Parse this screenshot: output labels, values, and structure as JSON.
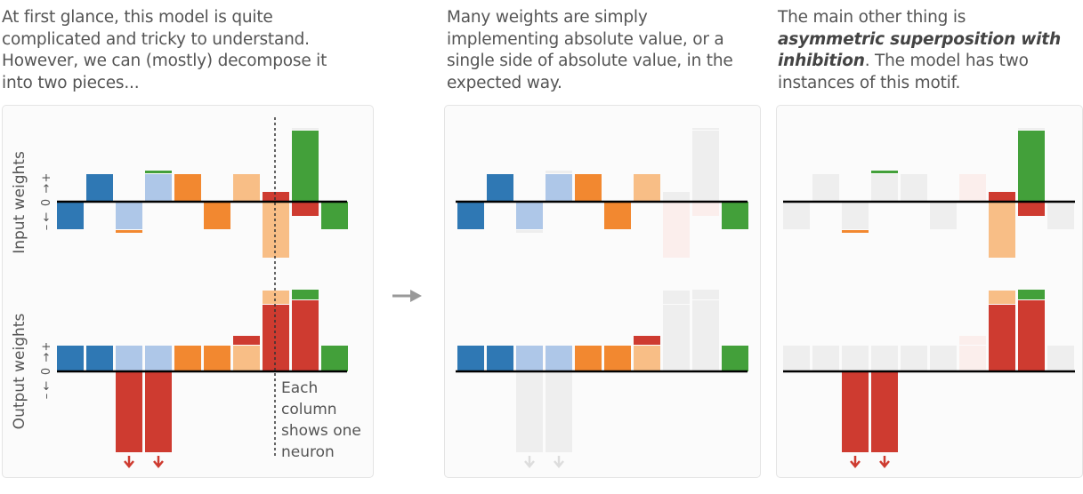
{
  "captions": {
    "panel1": [
      "At first glance, this model is quite",
      "complicated and tricky to understand.",
      "However, we can (mostly) decompose it",
      "into two pieces..."
    ],
    "panel2": [
      "Many weights are simply",
      "implementing absolute value, or a",
      "single side of absolute value, in the",
      "expected way."
    ],
    "panel3": {
      "line1": "The main other thing is",
      "emph": "asymmetric superposition with inhibition",
      "tail": ". The model has two instances of this motif."
    }
  },
  "axis_labels": {
    "input": "Input weights",
    "output": "Output weights",
    "minus": "–",
    "zero": "0",
    "plus": "+"
  },
  "annotation": [
    "Each",
    "column",
    "shows one",
    "neuron"
  ],
  "colors": {
    "blue": "#2f78b4",
    "light_blue": "#aec7e8",
    "orange": "#f28830",
    "light_orange": "#f8be86",
    "red": "#ce3b30",
    "light_red": "#f4a69e",
    "green": "#43a03a",
    "gray": "#eeeeee",
    "faint_red": "#fbeeec"
  },
  "neurons": [
    {
      "in_pos": 0.0,
      "in_pos_color": "",
      "in_neg": -0.95,
      "in_neg_color": "blue",
      "out_pos": 0.9,
      "out_pos_color": "blue",
      "out_neg": 0.0,
      "out_neg_color": "",
      "extra_pos": 0.0,
      "extra_pos_color": "",
      "extra_neg": 0.0,
      "extra_neg_color": "",
      "role": "abs"
    },
    {
      "in_pos": 0.95,
      "in_pos_color": "blue",
      "in_neg": 0.0,
      "in_neg_color": "",
      "out_pos": 0.9,
      "out_pos_color": "blue",
      "out_neg": 0.0,
      "out_neg_color": "",
      "extra_pos": 0.0,
      "extra_pos_color": "",
      "extra_neg": 0.0,
      "extra_neg_color": "",
      "role": "abs"
    },
    {
      "in_pos": 0.0,
      "in_pos_color": "",
      "in_neg": -0.95,
      "in_neg_color": "light_blue",
      "out_pos": 0.9,
      "out_pos_color": "light_blue",
      "out_neg": -2.8,
      "out_neg_color": "red",
      "extra_pos": 0.0,
      "extra_pos_color": "",
      "extra_neg": -0.08,
      "extra_neg_color": "orange",
      "role": "abs-inhibited"
    },
    {
      "in_pos": 0.95,
      "in_pos_color": "light_blue",
      "in_neg": 0.0,
      "in_neg_color": "",
      "out_pos": 0.9,
      "out_pos_color": "light_blue",
      "out_neg": -2.8,
      "out_neg_color": "red",
      "extra_pos": 0.08,
      "extra_pos_color": "green",
      "extra_neg": 0.0,
      "extra_neg_color": "",
      "role": "abs-inhibited"
    },
    {
      "in_pos": 0.95,
      "in_pos_color": "orange",
      "in_neg": 0.0,
      "in_neg_color": "",
      "out_pos": 0.9,
      "out_pos_color": "orange",
      "out_neg": 0.0,
      "out_neg_color": "",
      "extra_pos": 0.0,
      "extra_pos_color": "",
      "extra_neg": 0.0,
      "extra_neg_color": "",
      "role": "abs"
    },
    {
      "in_pos": 0.0,
      "in_pos_color": "",
      "in_neg": -0.95,
      "in_neg_color": "orange",
      "out_pos": 0.9,
      "out_pos_color": "orange",
      "out_neg": 0.0,
      "out_neg_color": "",
      "extra_pos": 0.0,
      "extra_pos_color": "",
      "extra_neg": 0.0,
      "extra_neg_color": "",
      "role": "abs"
    },
    {
      "in_pos": 0.95,
      "in_pos_color": "light_orange",
      "in_neg": 0.0,
      "in_neg_color": "",
      "out_pos": 0.9,
      "out_pos_color": "light_orange",
      "out_neg": 0.0,
      "out_neg_color": "",
      "extra_pos": 0.3,
      "extra_pos_color": "red",
      "extra_neg": 0.0,
      "extra_neg_color": "",
      "role": "abs"
    },
    {
      "in_pos": 0.35,
      "in_pos_color": "red",
      "in_neg": -1.95,
      "in_neg_color": "light_orange",
      "out_pos": 2.3,
      "out_pos_color": "red",
      "out_neg": 0.0,
      "out_neg_color": "",
      "extra_pos": 0.45,
      "extra_pos_color": "light_orange",
      "extra_neg": 0.0,
      "extra_neg_color": "",
      "role": "superposition"
    },
    {
      "in_pos": 2.45,
      "in_pos_color": "green",
      "in_neg": -0.5,
      "in_neg_color": "red",
      "out_pos": 2.45,
      "out_pos_color": "red",
      "out_neg": 0.0,
      "out_neg_color": "",
      "extra_pos": 0.35,
      "extra_pos_color": "green",
      "extra_neg": 0.0,
      "extra_neg_color": "",
      "role": "superposition"
    },
    {
      "in_pos": 0.0,
      "in_pos_color": "",
      "in_neg": -0.95,
      "in_neg_color": "green",
      "out_pos": 0.9,
      "out_pos_color": "green",
      "out_neg": 0.0,
      "out_neg_color": "",
      "extra_pos": 0.0,
      "extra_pos_color": "",
      "extra_neg": 0.0,
      "extra_neg_color": "",
      "role": "abs"
    }
  ]
}
